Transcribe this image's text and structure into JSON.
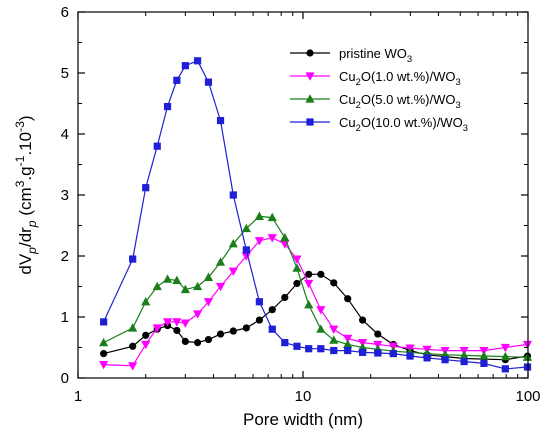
{
  "chart_data": {
    "type": "line",
    "title": "",
    "xlabel": "Pore width (nm)",
    "ylabel": {
      "parts": [
        {
          "text": "dV",
          "style": "normal"
        },
        {
          "text": "p",
          "style": "sub-italic"
        },
        {
          "text": "/dr",
          "style": "normal"
        },
        {
          "text": "p",
          "style": "sub-italic"
        },
        {
          "text": " (cm",
          "style": "normal"
        },
        {
          "text": "3",
          "style": "sup"
        },
        {
          "text": ".g",
          "style": "normal"
        },
        {
          "text": "-1",
          "style": "sup"
        },
        {
          "text": ".10",
          "style": "normal"
        },
        {
          "text": "-3",
          "style": "sup"
        },
        {
          "text": ")",
          "style": "normal"
        }
      ]
    },
    "xscale": "log",
    "xlim": [
      1,
      100
    ],
    "ylim": [
      0,
      6
    ],
    "xticks": [
      1,
      10,
      100
    ],
    "xtick_labels": [
      "1",
      "10",
      "100"
    ],
    "yticks": [
      0,
      1,
      2,
      3,
      4,
      5,
      6
    ],
    "ytick_labels": [
      "0",
      "1",
      "2",
      "3",
      "4",
      "5",
      "6"
    ],
    "grid": false,
    "legend_position": "top-right",
    "series": [
      {
        "name_parts": [
          {
            "text": "pristine WO",
            "style": "normal"
          },
          {
            "text": "3",
            "style": "sub"
          }
        ],
        "color": "#000000",
        "marker": "circle",
        "x": [
          1.3,
          1.75,
          2.0,
          2.25,
          2.5,
          2.75,
          3.0,
          3.4,
          3.8,
          4.3,
          4.9,
          5.6,
          6.4,
          7.3,
          8.3,
          9.4,
          10.6,
          12.0,
          13.7,
          15.8,
          18.4,
          21.5,
          25.2,
          29.9,
          35.6,
          42.8,
          52.0,
          63.7,
          79.3,
          99.5
        ],
        "y": [
          0.4,
          0.52,
          0.7,
          0.8,
          0.86,
          0.78,
          0.6,
          0.58,
          0.63,
          0.72,
          0.77,
          0.82,
          0.95,
          1.12,
          1.32,
          1.55,
          1.7,
          1.7,
          1.56,
          1.3,
          0.95,
          0.72,
          0.55,
          0.45,
          0.38,
          0.35,
          0.32,
          0.31,
          0.3,
          0.36
        ]
      },
      {
        "name_parts": [
          {
            "text": "Cu",
            "style": "normal"
          },
          {
            "text": "2",
            "style": "sub"
          },
          {
            "text": "O(1.0 wt.%)/WO",
            "style": "normal"
          },
          {
            "text": "3",
            "style": "sub"
          }
        ],
        "color": "#ff00ff",
        "marker": "triangle-down",
        "x": [
          1.3,
          1.75,
          2.0,
          2.25,
          2.5,
          2.75,
          3.0,
          3.4,
          3.8,
          4.3,
          4.9,
          5.6,
          6.4,
          7.3,
          8.3,
          9.4,
          10.6,
          12.0,
          13.7,
          15.8,
          18.4,
          21.5,
          25.2,
          29.9,
          35.6,
          42.8,
          52.0,
          63.7,
          79.3,
          99.5
        ],
        "y": [
          0.22,
          0.2,
          0.55,
          0.82,
          0.92,
          0.92,
          0.9,
          1.05,
          1.25,
          1.5,
          1.75,
          2.0,
          2.25,
          2.3,
          2.2,
          1.95,
          1.55,
          1.12,
          0.8,
          0.65,
          0.58,
          0.55,
          0.52,
          0.49,
          0.47,
          0.45,
          0.45,
          0.45,
          0.5,
          0.55
        ]
      },
      {
        "name_parts": [
          {
            "text": "Cu",
            "style": "normal"
          },
          {
            "text": "2",
            "style": "sub"
          },
          {
            "text": "O(5.0 wt.%)/WO",
            "style": "normal"
          },
          {
            "text": "3",
            "style": "sub"
          }
        ],
        "color": "#1a7f1a",
        "marker": "triangle-up",
        "x": [
          1.3,
          1.75,
          2.0,
          2.25,
          2.5,
          2.75,
          3.0,
          3.4,
          3.8,
          4.3,
          4.9,
          5.6,
          6.4,
          7.3,
          8.3,
          9.4,
          10.6,
          12.0,
          13.7,
          15.8,
          18.4,
          21.5,
          25.2,
          29.9,
          35.6,
          42.8,
          52.0,
          63.7,
          79.3,
          99.5
        ],
        "y": [
          0.58,
          0.82,
          1.25,
          1.5,
          1.62,
          1.6,
          1.45,
          1.5,
          1.65,
          1.9,
          2.2,
          2.45,
          2.65,
          2.63,
          2.3,
          1.8,
          1.2,
          0.8,
          0.62,
          0.55,
          0.5,
          0.47,
          0.44,
          0.42,
          0.4,
          0.38,
          0.37,
          0.36,
          0.35,
          0.34
        ]
      },
      {
        "name_parts": [
          {
            "text": "Cu",
            "style": "normal"
          },
          {
            "text": "2",
            "style": "sub"
          },
          {
            "text": "O(10.0 wt.%)/WO",
            "style": "normal"
          },
          {
            "text": "3",
            "style": "sub"
          }
        ],
        "color": "#1f1fd6",
        "marker": "square",
        "x": [
          1.3,
          1.75,
          2.0,
          2.25,
          2.5,
          2.75,
          3.0,
          3.4,
          3.8,
          4.3,
          4.9,
          5.6,
          6.4,
          7.3,
          8.3,
          9.4,
          10.6,
          12.0,
          13.7,
          15.8,
          18.4,
          21.5,
          25.2,
          29.9,
          35.6,
          42.8,
          52.0,
          63.7,
          79.3,
          99.5
        ],
        "y": [
          0.92,
          1.95,
          3.12,
          3.8,
          4.45,
          4.88,
          5.12,
          5.2,
          4.85,
          4.22,
          3.0,
          2.1,
          1.25,
          0.8,
          0.58,
          0.52,
          0.48,
          0.48,
          0.45,
          0.45,
          0.42,
          0.41,
          0.4,
          0.36,
          0.33,
          0.3,
          0.27,
          0.24,
          0.15,
          0.18
        ]
      }
    ]
  }
}
